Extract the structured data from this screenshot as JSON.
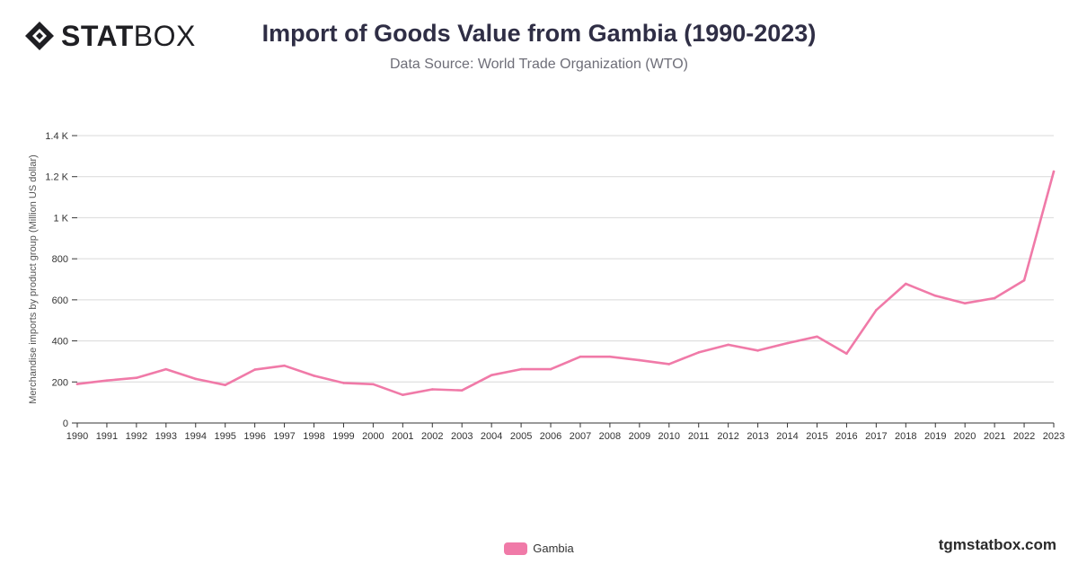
{
  "brand": {
    "logo_bold": "STAT",
    "logo_light": "BOX",
    "site": "tgmstatbox.com"
  },
  "header": {
    "title": "Import of Goods Value from Gambia (1990-2023)",
    "subtitle": "Data Source: World Trade Organization (WTO)"
  },
  "colors": {
    "series": "#f07aa8",
    "grid": "#d9d9d9",
    "axis": "#333333",
    "text": "#333333"
  },
  "chart_data": {
    "type": "line",
    "title": "Import of Goods Value from Gambia (1990-2023)",
    "xlabel": "",
    "ylabel": "Merchandise imports by product group (Million US dollar)",
    "ylim": [
      0,
      1400
    ],
    "yticks": [
      0,
      200,
      400,
      600,
      800,
      1000,
      1200,
      1400
    ],
    "ytick_labels": [
      "0",
      "200",
      "400",
      "600",
      "800",
      "1 K",
      "1.2 K",
      "1.4 K"
    ],
    "grid": true,
    "legend_position": "bottom-center",
    "x": [
      "1990",
      "1991",
      "1992",
      "1993",
      "1994",
      "1995",
      "1996",
      "1997",
      "1998",
      "1999",
      "2000",
      "2001",
      "2002",
      "2003",
      "2004",
      "2005",
      "2006",
      "2007",
      "2008",
      "2009",
      "2010",
      "2011",
      "2012",
      "2013",
      "2014",
      "2015",
      "2016",
      "2017",
      "2018",
      "2019",
      "2020",
      "2021",
      "2022",
      "2023"
    ],
    "series": [
      {
        "name": "Gambia",
        "color": "#f07aa8",
        "values": [
          190,
          207,
          220,
          262,
          215,
          185,
          260,
          279,
          230,
          195,
          189,
          137,
          164,
          159,
          233,
          262,
          262,
          323,
          323,
          306,
          287,
          344,
          381,
          353,
          389,
          421,
          338,
          550,
          678,
          620,
          583,
          608,
          695,
          1225
        ]
      }
    ]
  }
}
